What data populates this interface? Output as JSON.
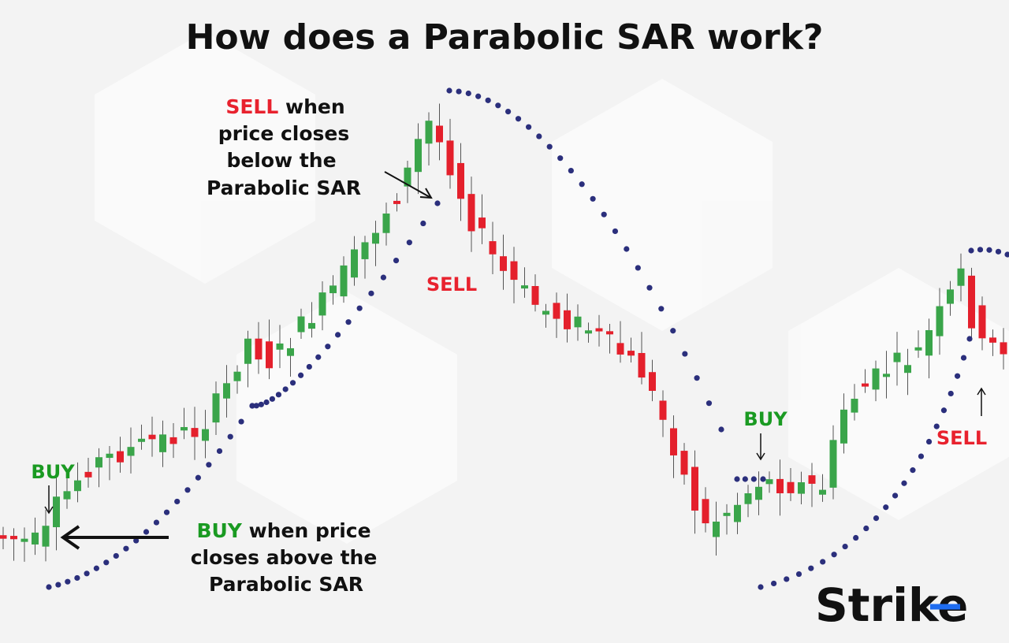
{
  "title": "How does a Parabolic SAR work?",
  "sell_note": {
    "signal": "SELL",
    "line1": " when",
    "line2": "price closes",
    "line3": "below the",
    "line4": "Parabolic SAR"
  },
  "buy_note": {
    "signal": "BUY",
    "line1": " when  price",
    "line2": "closes above the",
    "line3": "Parabolic SAR"
  },
  "markers": {
    "buy_left": "BUY",
    "sell_mid": "SELL",
    "buy_right": "BUY",
    "sell_right": "SELL"
  },
  "logo": "Strike"
}
